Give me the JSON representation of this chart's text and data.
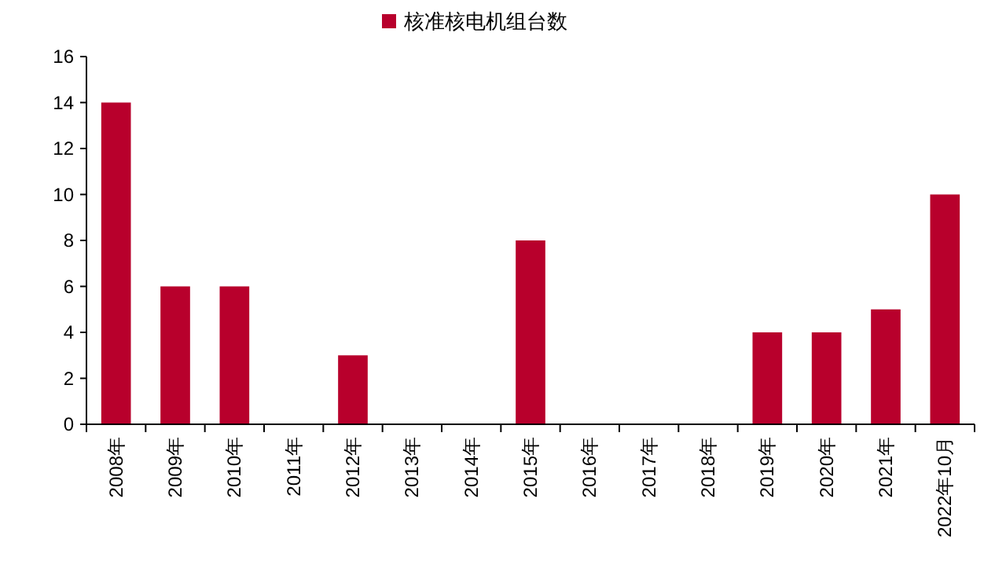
{
  "chart_data": {
    "type": "bar",
    "categories": [
      "2008年",
      "2009年",
      "2010年",
      "2011年",
      "2012年",
      "2013年",
      "2014年",
      "2015年",
      "2016年",
      "2017年",
      "2018年",
      "2019年",
      "2020年",
      "2021年",
      "2022年10月"
    ],
    "series": [
      {
        "name": "核准核电机组台数",
        "color": "#b8002c",
        "values": [
          14,
          6,
          6,
          0,
          3,
          0,
          0,
          8,
          0,
          0,
          0,
          4,
          4,
          5,
          10
        ]
      }
    ],
    "ylim": [
      0,
      16
    ],
    "yticks": [
      0,
      2,
      4,
      6,
      8,
      10,
      12,
      14,
      16
    ],
    "legend": "top",
    "grid": false
  }
}
